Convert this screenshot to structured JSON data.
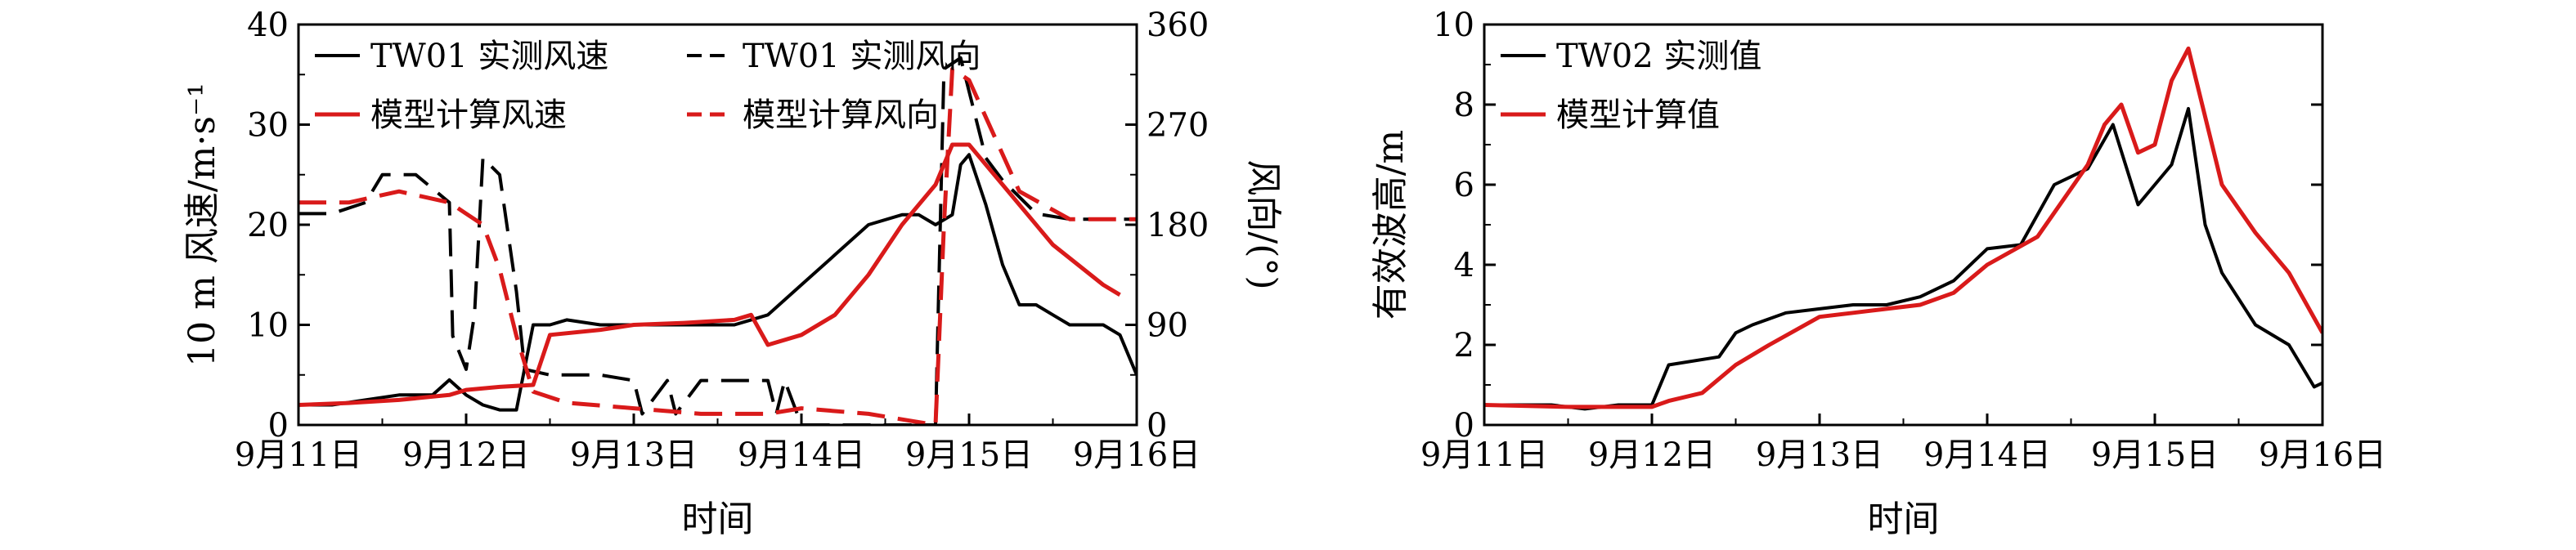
{
  "chart_data": [
    {
      "type": "line",
      "xlabel": "时间",
      "ylabel": "10 m 风速/m·s⁻¹",
      "y2label": "风向/(°)",
      "x_ticks": [
        "9月11日",
        "9月12日",
        "9月13日",
        "9月14日",
        "9月15日",
        "9月16日"
      ],
      "xlim": [
        11,
        16
      ],
      "ylim": [
        0,
        40
      ],
      "y_ticks": [
        0,
        10,
        20,
        30,
        40
      ],
      "y2lim": [
        0,
        360
      ],
      "y2_ticks": [
        0,
        90,
        180,
        270,
        360
      ],
      "legend": "top-left",
      "series": [
        {
          "name": "TW01 实测风速",
          "color": "#000000",
          "dash": "solid",
          "axis": "left",
          "x": [
            11.0,
            11.2,
            11.4,
            11.6,
            11.8,
            11.9,
            12.0,
            12.1,
            12.2,
            12.3,
            12.4,
            12.5,
            12.6,
            12.8,
            13.0,
            13.2,
            13.4,
            13.6,
            13.7,
            13.8,
            14.0,
            14.2,
            14.4,
            14.6,
            14.7,
            14.8,
            14.9,
            14.95,
            15.0,
            15.1,
            15.2,
            15.3,
            15.4,
            15.5,
            15.6,
            15.7,
            15.8,
            15.9,
            16.0
          ],
          "y": [
            2,
            2,
            2.5,
            3,
            3,
            4.5,
            3,
            2,
            1.5,
            1.5,
            10,
            10,
            10.5,
            10,
            10,
            10,
            10,
            10,
            10.5,
            11,
            14,
            17,
            20,
            21,
            21,
            20,
            21,
            26,
            27,
            22,
            16,
            12,
            12,
            11,
            10,
            10,
            10,
            9,
            5
          ]
        },
        {
          "name": "TW01 实测风向",
          "color": "#000000",
          "dash": "dashed",
          "axis": "right",
          "x": [
            11.0,
            11.2,
            11.4,
            11.5,
            11.7,
            11.9,
            11.92,
            12.0,
            12.05,
            12.1,
            12.2,
            12.3,
            12.35,
            12.5,
            12.8,
            13.0,
            13.05,
            13.2,
            13.25,
            13.4,
            13.6,
            13.8,
            13.85,
            13.9,
            14.0,
            14.5,
            14.8,
            14.85,
            14.95,
            15.1,
            15.2,
            15.4,
            15.6,
            16.0
          ],
          "y": [
            190,
            190,
            200,
            225,
            225,
            200,
            80,
            50,
            100,
            240,
            225,
            120,
            50,
            45,
            45,
            40,
            10,
            40,
            10,
            40,
            40,
            40,
            10,
            40,
            0,
            0,
            0,
            320,
            330,
            240,
            220,
            190,
            185,
            185
          ]
        },
        {
          "name": "模型计算风速",
          "color": "#d91a1a",
          "dash": "solid",
          "axis": "left",
          "x": [
            11.0,
            11.3,
            11.6,
            11.9,
            12.0,
            12.2,
            12.4,
            12.5,
            12.8,
            13.0,
            13.3,
            13.6,
            13.7,
            13.8,
            14.0,
            14.2,
            14.4,
            14.6,
            14.8,
            14.9,
            15.0,
            15.2,
            15.5,
            15.8,
            15.9
          ],
          "y": [
            2,
            2.2,
            2.5,
            3,
            3.5,
            3.8,
            4,
            9,
            9.5,
            10,
            10.2,
            10.5,
            11,
            8,
            9,
            11,
            15,
            20,
            24,
            28,
            28,
            24,
            18,
            14,
            13
          ]
        },
        {
          "name": "模型计算风向",
          "color": "#d91a1a",
          "dash": "dashed",
          "axis": "right",
          "x": [
            11.0,
            11.3,
            11.6,
            11.9,
            12.0,
            12.1,
            12.2,
            12.3,
            12.4,
            12.6,
            13.0,
            13.4,
            13.6,
            13.8,
            14.0,
            14.4,
            14.6,
            14.8,
            14.85,
            14.9,
            15.0,
            15.3,
            15.6,
            16.0
          ],
          "y": [
            200,
            200,
            210,
            200,
            190,
            180,
            140,
            80,
            30,
            20,
            15,
            10,
            10,
            10,
            15,
            10,
            5,
            0,
            180,
            320,
            310,
            210,
            185,
            185
          ]
        }
      ]
    },
    {
      "type": "line",
      "xlabel": "时间",
      "ylabel": "有效波高/m",
      "x_ticks": [
        "9月11日",
        "9月12日",
        "9月13日",
        "9月14日",
        "9月15日",
        "9月16日"
      ],
      "xlim": [
        11,
        16
      ],
      "ylim": [
        0,
        10
      ],
      "y_ticks": [
        0,
        2,
        4,
        6,
        8,
        10
      ],
      "legend": "top-left",
      "series": [
        {
          "name": "TW02 实测值",
          "color": "#000000",
          "dash": "solid",
          "x": [
            11.0,
            11.4,
            11.6,
            11.8,
            12.0,
            12.1,
            12.4,
            12.5,
            12.6,
            12.8,
            13.0,
            13.2,
            13.4,
            13.6,
            13.8,
            14.0,
            14.2,
            14.4,
            14.6,
            14.75,
            14.9,
            15.0,
            15.1,
            15.2,
            15.3,
            15.4,
            15.6,
            15.8,
            15.95,
            16.0
          ],
          "y": [
            0.5,
            0.5,
            0.4,
            0.5,
            0.5,
            1.5,
            1.7,
            2.3,
            2.5,
            2.8,
            2.9,
            3.0,
            3.0,
            3.2,
            3.6,
            4.4,
            4.5,
            6.0,
            6.4,
            7.5,
            5.5,
            6.0,
            6.5,
            7.9,
            5.0,
            3.8,
            2.5,
            2.0,
            0.95,
            1.05
          ]
        },
        {
          "name": "模型计算值",
          "color": "#d91a1a",
          "dash": "solid",
          "x": [
            11.0,
            11.5,
            11.8,
            12.0,
            12.1,
            12.3,
            12.5,
            12.7,
            13.0,
            13.2,
            13.4,
            13.6,
            13.8,
            14.0,
            14.3,
            14.6,
            14.7,
            14.8,
            14.9,
            15.0,
            15.1,
            15.2,
            15.4,
            15.6,
            15.8,
            16.0
          ],
          "y": [
            0.5,
            0.45,
            0.45,
            0.45,
            0.6,
            0.8,
            1.5,
            2.0,
            2.7,
            2.8,
            2.9,
            3.0,
            3.3,
            4.0,
            4.7,
            6.5,
            7.5,
            8.0,
            6.8,
            7.0,
            8.6,
            9.4,
            6.0,
            4.8,
            3.8,
            2.3
          ]
        }
      ]
    }
  ]
}
